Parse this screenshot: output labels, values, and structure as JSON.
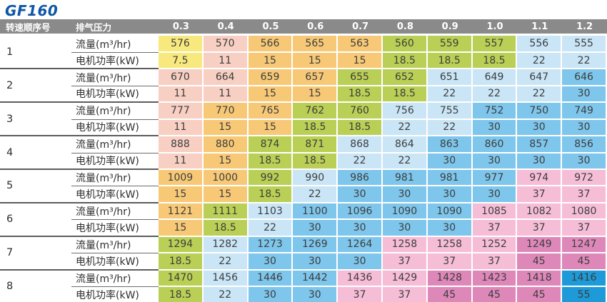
{
  "title": "GF160",
  "theme": {
    "title_color": "#0e57a5",
    "header_bg": "#8a8a8a",
    "header_text": "#ffffff",
    "cell_text": "#3d3d3d",
    "power_colors": {
      "7.5": "#f8e97e",
      "11": "#f8cfc3",
      "15": "#f7c977",
      "18.5": "#bacf55",
      "22": "#c9e5f6",
      "30": "#7ec6ec",
      "37": "#f6bdd6",
      "45": "#de88ba",
      "55": "#1d9ad7"
    }
  },
  "table": {
    "speed_header": "转速顺序号",
    "pressure_header": "排气压力",
    "pressures": [
      "0.3",
      "0.4",
      "0.5",
      "0.6",
      "0.7",
      "0.8",
      "0.9",
      "1.0",
      "1.1",
      "1.2"
    ],
    "flow_label": "流量(m³/hr)",
    "power_label": "电机功率(kW)",
    "groups": [
      {
        "speed": "1",
        "flow": [
          "576",
          "570",
          "566",
          "565",
          "563",
          "560",
          "559",
          "557",
          "556",
          "555"
        ],
        "power": [
          "7.5",
          "11",
          "15",
          "15",
          "15",
          "18.5",
          "18.5",
          "18.5",
          "22",
          "22"
        ]
      },
      {
        "speed": "2",
        "flow": [
          "670",
          "664",
          "659",
          "657",
          "655",
          "652",
          "651",
          "649",
          "647",
          "646"
        ],
        "power": [
          "11",
          "11",
          "15",
          "15",
          "18.5",
          "18.5",
          "22",
          "22",
          "22",
          "30"
        ]
      },
      {
        "speed": "3",
        "flow": [
          "777",
          "770",
          "765",
          "762",
          "760",
          "756",
          "755",
          "752",
          "750",
          "749"
        ],
        "power": [
          "11",
          "15",
          "15",
          "18.5",
          "18.5",
          "22",
          "22",
          "30",
          "30",
          "30"
        ]
      },
      {
        "speed": "4",
        "flow": [
          "888",
          "880",
          "874",
          "871",
          "868",
          "864",
          "863",
          "860",
          "857",
          "856"
        ],
        "power": [
          "11",
          "15",
          "18.5",
          "18.5",
          "22",
          "22",
          "30",
          "30",
          "30",
          "30"
        ]
      },
      {
        "speed": "5",
        "flow": [
          "1009",
          "1000",
          "992",
          "990",
          "986",
          "981",
          "981",
          "977",
          "974",
          "972"
        ],
        "power": [
          "15",
          "15",
          "18.5",
          "22",
          "30",
          "30",
          "30",
          "30",
          "37",
          "37"
        ]
      },
      {
        "speed": "6",
        "flow": [
          "1121",
          "1111",
          "1103",
          "1100",
          "1096",
          "1090",
          "1090",
          "1085",
          "1082",
          "1080"
        ],
        "power": [
          "15",
          "18.5",
          "22",
          "30",
          "30",
          "30",
          "30",
          "37",
          "37",
          "37"
        ]
      },
      {
        "speed": "7",
        "flow": [
          "1294",
          "1282",
          "1273",
          "1269",
          "1264",
          "1258",
          "1258",
          "1252",
          "1249",
          "1247"
        ],
        "power": [
          "18.5",
          "22",
          "30",
          "30",
          "30",
          "37",
          "37",
          "37",
          "45",
          "45"
        ]
      },
      {
        "speed": "8",
        "flow": [
          "1470",
          "1456",
          "1446",
          "1442",
          "1436",
          "1429",
          "1428",
          "1423",
          "1418",
          "1416"
        ],
        "power": [
          "18.5",
          "22",
          "30",
          "30",
          "37",
          "37",
          "45",
          "45",
          "45",
          "55"
        ]
      }
    ]
  }
}
